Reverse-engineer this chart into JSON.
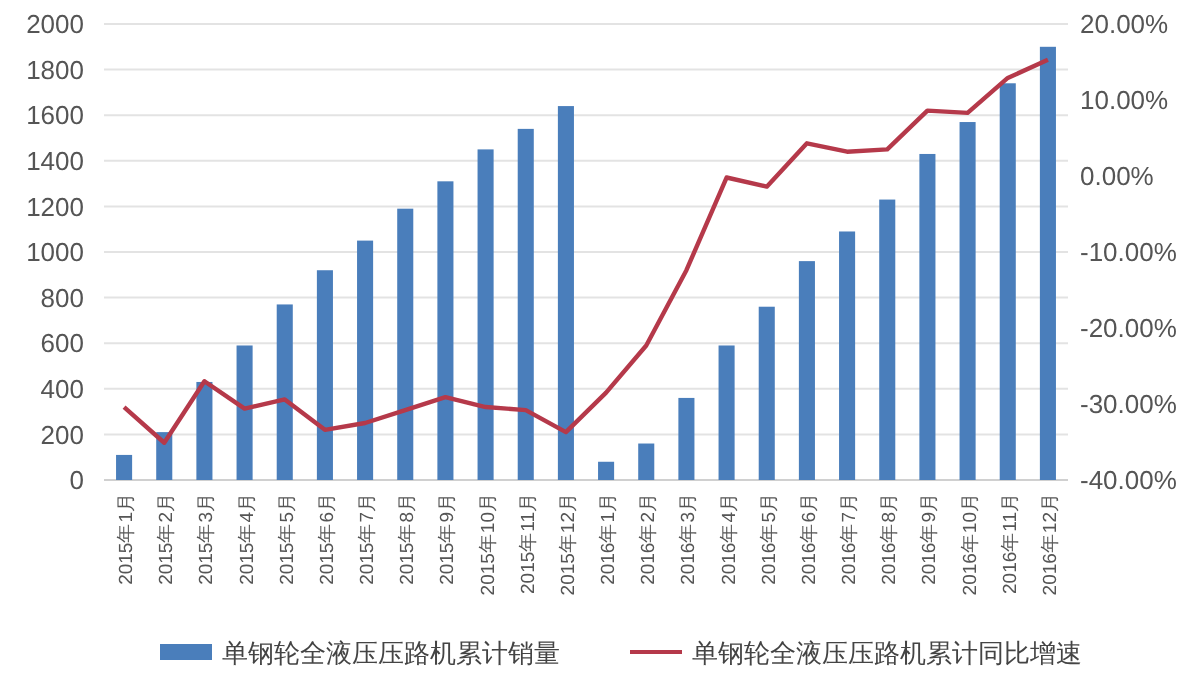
{
  "chart_data": {
    "type": "bar",
    "categories": [
      "2015年1月",
      "2015年2月",
      "2015年3月",
      "2015年4月",
      "2015年5月",
      "2015年6月",
      "2015年7月",
      "2015年8月",
      "2015年9月",
      "2015年10月",
      "2015年11月",
      "2015年12月",
      "2016年1月",
      "2016年2月",
      "2016年3月",
      "2016年4月",
      "2016年5月",
      "2016年6月",
      "2016年7月",
      "2016年8月",
      "2016年9月",
      "2016年10月",
      "2016年11月",
      "2016年12月"
    ],
    "series": [
      {
        "name": "单钢轮全液压压路机累计销量",
        "color": "#4a7ebb",
        "values": [
          110,
          210,
          430,
          590,
          770,
          920,
          1050,
          1190,
          1310,
          1450,
          1540,
          1640,
          80,
          160,
          360,
          590,
          760,
          960,
          1090,
          1230,
          1430,
          1570,
          1740,
          1900
        ]
      },
      {
        "name": "单钢轮全液压压路机累计同比增速",
        "type": "line",
        "axis": "y2",
        "color": "#b5394a",
        "values": [
          -30.4,
          -35.1,
          -27.0,
          -30.6,
          -29.4,
          -33.4,
          -32.5,
          -30.8,
          -29.1,
          -30.4,
          -30.8,
          -33.7,
          -28.5,
          -22.3,
          -12.4,
          -0.2,
          -1.4,
          4.3,
          3.2,
          3.5,
          8.6,
          8.3,
          12.9,
          15.3
        ]
      }
    ],
    "ylim": [
      0,
      2000
    ],
    "yticks": [
      0,
      200,
      400,
      600,
      800,
      1000,
      1200,
      1400,
      1600,
      1800,
      2000
    ],
    "y2lim": [
      -40,
      20
    ],
    "y2ticks": [
      {
        "value": -40,
        "label": "-40.00%"
      },
      {
        "value": -30,
        "label": "-30.00%"
      },
      {
        "value": -20,
        "label": "-20.00%"
      },
      {
        "value": -10,
        "label": "-10.00%"
      },
      {
        "value": 0,
        "label": "0.00%"
      },
      {
        "value": 10,
        "label": "10.00%"
      },
      {
        "value": 20,
        "label": "20.00%"
      }
    ],
    "grid": "y",
    "legend": "bottom",
    "marker": "none",
    "line_style": "solid"
  }
}
